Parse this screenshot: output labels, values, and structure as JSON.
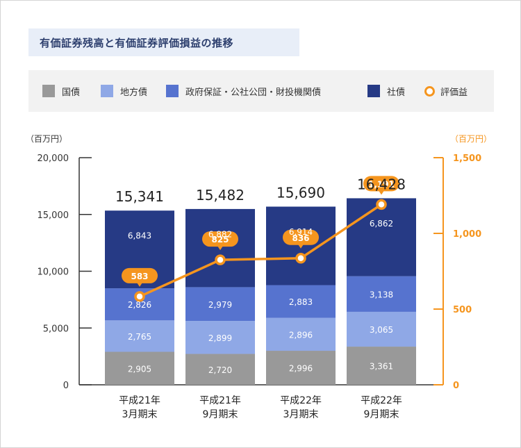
{
  "chart_data": {
    "type": "bar",
    "title": "有価証券残高と有価証券評価損益の推移",
    "categories": [
      [
        "平成21年",
        "3月期末"
      ],
      [
        "平成21年",
        "9月期末"
      ],
      [
        "平成22年",
        "3月期末"
      ],
      [
        "平成22年",
        "9月期末"
      ]
    ],
    "stacked": true,
    "series": [
      {
        "name": "国債",
        "values": [
          2905,
          2720,
          2996,
          3361
        ],
        "color": "#999999",
        "labels": [
          "2,905",
          "2,720",
          "2,996",
          "3,361"
        ]
      },
      {
        "name": "地方債",
        "values": [
          2765,
          2899,
          2896,
          3065
        ],
        "color": "#8fa8e6",
        "labels": [
          "2,765",
          "2,899",
          "2,896",
          "3,065"
        ]
      },
      {
        "name": "政府保証・公社公団・財投機関債",
        "values": [
          2826,
          2979,
          2883,
          3138
        ],
        "color": "#5673cf",
        "labels": [
          "2,826",
          "2,979",
          "2,883",
          "3,138"
        ]
      },
      {
        "name": "社債",
        "values": [
          6843,
          6882,
          6914,
          6862
        ],
        "color": "#263a85",
        "labels": [
          "6,843",
          "6,882",
          "6,914",
          "6,862"
        ]
      }
    ],
    "totals": [
      "15,341",
      "15,482",
      "15,690",
      "16,428"
    ],
    "line_series": {
      "name": "評価益",
      "values": [
        583,
        825,
        836,
        1191
      ],
      "labels": [
        "583",
        "825",
        "836",
        "1,191"
      ],
      "color": "#f5951e",
      "axis": "right"
    },
    "y_left": {
      "unit": "（百万円）",
      "min": 0,
      "max": 20000,
      "ticks": [
        "0",
        "5,000",
        "10,000",
        "15,000",
        "20,000"
      ],
      "tick_values": [
        0,
        5000,
        10000,
        15000,
        20000
      ]
    },
    "y_right": {
      "unit": "（百万円）",
      "min": 0,
      "max": 1500,
      "ticks": [
        "0",
        "500",
        "1,000",
        "1,500"
      ],
      "tick_values": [
        0,
        500,
        1000,
        1500
      ]
    },
    "legend_position": "top"
  }
}
